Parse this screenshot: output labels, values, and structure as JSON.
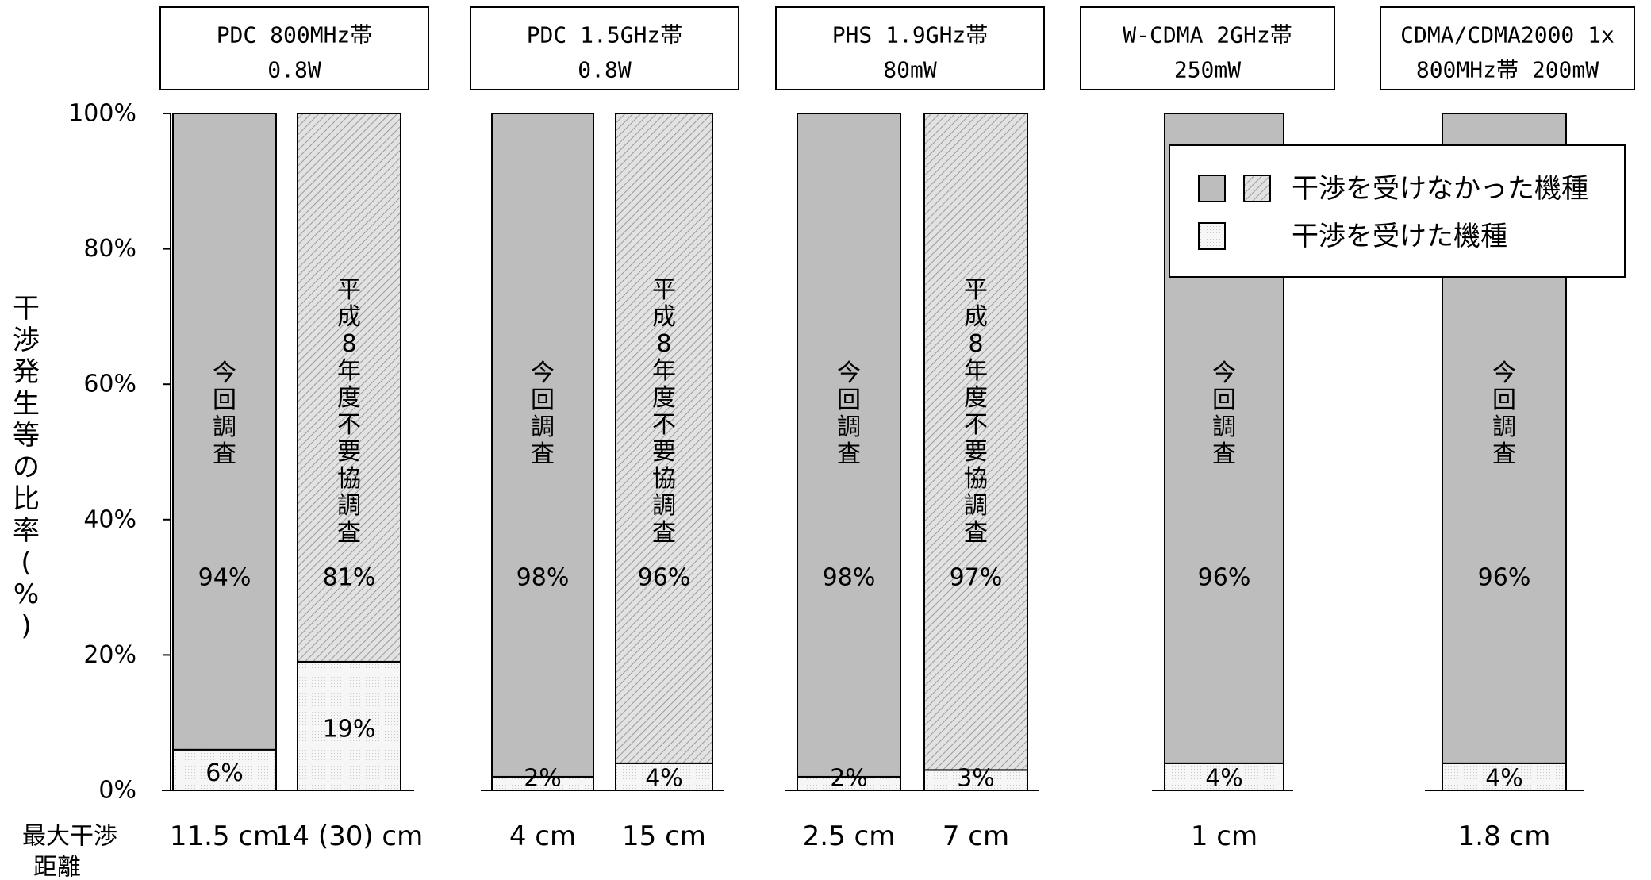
{
  "chart_data": {
    "type": "bar",
    "stacked": true,
    "ylabel": "干渉発生等の比率(%)",
    "ylim": [
      0,
      100
    ],
    "yticks": [
      "0%",
      "20%",
      "40%",
      "60%",
      "80%",
      "100%"
    ],
    "x_row_label": "最大干渉距離",
    "groups": [
      {
        "header": [
          "PDC 800MHz帯",
          "0.8W"
        ],
        "bars": [
          {
            "label": "今回調査",
            "not_interfered": 94,
            "interfered": 6,
            "max_distance": "11.5 cm",
            "pattern": "solid"
          },
          {
            "label": "平成8年度不要協調査",
            "not_interfered": 81,
            "interfered": 19,
            "max_distance": "14 (30) cm",
            "pattern": "hatched"
          }
        ]
      },
      {
        "header": [
          "PDC 1.5GHz帯",
          "0.8W"
        ],
        "bars": [
          {
            "label": "今回調査",
            "not_interfered": 98,
            "interfered": 2,
            "max_distance": "4 cm",
            "pattern": "solid"
          },
          {
            "label": "平成8年度不要協調査",
            "not_interfered": 96,
            "interfered": 4,
            "max_distance": "15 cm",
            "pattern": "hatched"
          }
        ]
      },
      {
        "header": [
          "PHS 1.9GHz帯",
          "80mW"
        ],
        "bars": [
          {
            "label": "今回調査",
            "not_interfered": 98,
            "interfered": 2,
            "max_distance": "2.5 cm",
            "pattern": "solid"
          },
          {
            "label": "平成8年度不要協調査",
            "not_interfered": 97,
            "interfered": 3,
            "max_distance": "7 cm",
            "pattern": "hatched"
          }
        ]
      },
      {
        "header": [
          "W-CDMA 2GHz帯",
          "250mW"
        ],
        "bars": [
          {
            "label": "今回調査",
            "not_interfered": 96,
            "interfered": 4,
            "max_distance": "1 cm",
            "pattern": "solid"
          }
        ]
      },
      {
        "header": [
          "CDMA/CDMA2000 1x",
          "800MHz帯 200mW"
        ],
        "bars": [
          {
            "label": "今回調査",
            "not_interfered": 96,
            "interfered": 4,
            "max_distance": "1.8 cm",
            "pattern": "solid"
          }
        ]
      }
    ],
    "legend": {
      "position": "top-right",
      "items": [
        {
          "label": "干渉を受けなかった機種",
          "swatches": [
            "solid",
            "hatched"
          ]
        },
        {
          "label": "干渉を受けた機種",
          "swatches": [
            "dotted"
          ]
        }
      ]
    },
    "colors": {
      "solid": "#bdbdbd",
      "hatched_bg": "#e2e2e2",
      "hatched_line": "#9a9a9a",
      "dotted_bg": "#f6f6f6",
      "dotted_dot": "#c8c8c8",
      "stroke": "#000000"
    }
  }
}
